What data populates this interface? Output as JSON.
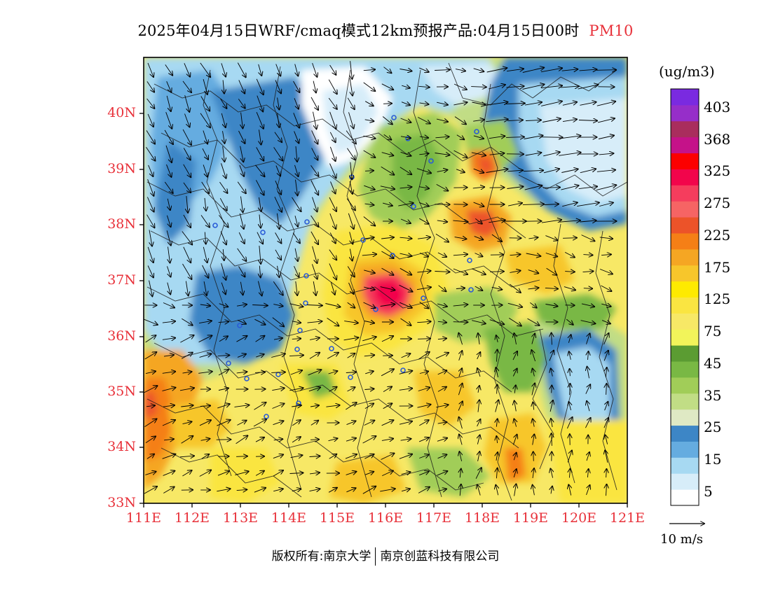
{
  "title": {
    "main": "2025年04月15日WRF/cmaq模式12km预报产品:04月15日00时",
    "variable": "PM10"
  },
  "axes": {
    "lat_labels": [
      "40N",
      "39N",
      "38N",
      "37N",
      "36N",
      "35N",
      "34N",
      "33N"
    ],
    "lon_labels": [
      "111E",
      "112E",
      "113E",
      "114E",
      "115E",
      "116E",
      "117E",
      "118E",
      "119E",
      "120E",
      "121E"
    ]
  },
  "colorbar": {
    "unit": "(ug/m3)",
    "labels": [
      "403",
      "368",
      "325",
      "275",
      "225",
      "175",
      "125",
      "75",
      "45",
      "35",
      "25",
      "15",
      "5"
    ],
    "colors": [
      "#ffffff",
      "#d7edf9",
      "#a7d9f2",
      "#65ace0",
      "#3d86c6",
      "#dfe9c4",
      "#c1dd85",
      "#a1cd58",
      "#79b844",
      "#5b9c32",
      "#f2f45a",
      "#f7e866",
      "#fae541",
      "#feea00",
      "#f7c62b",
      "#f5a623",
      "#f57f16",
      "#ec5329",
      "#f66464",
      "#f53d5d",
      "#f2054b",
      "#fc0000",
      "#c51289",
      "#a92d5d",
      "#962ec9",
      "#7a2ae0"
    ]
  },
  "vector_reference": {
    "label": "10 m/s"
  },
  "footer": {
    "left": "版权所有:南京大学",
    "right": "南京创蓝科技有限公司"
  }
}
